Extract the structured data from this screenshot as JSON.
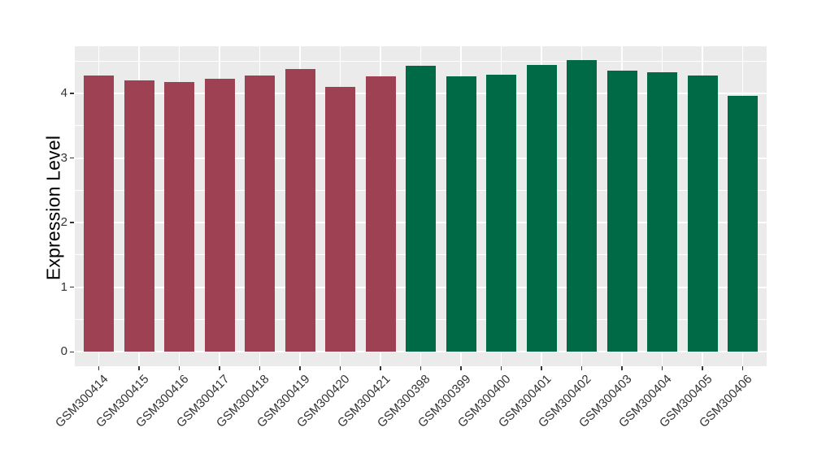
{
  "figure": {
    "background": "#FFFFFF",
    "panel_background": "#EBEBEB",
    "gridline_color": "#FFFFFF",
    "axis_text_color": "#333333",
    "axis_title_color": "#000000"
  },
  "chart_data": {
    "type": "bar",
    "title": "",
    "xlabel": "",
    "ylabel": "Expression Level",
    "ylim": [
      0,
      4.75
    ],
    "yticks": [
      0,
      1,
      2,
      3,
      4
    ],
    "grid": "major and minor horizontal white gridlines, vertical white gridline at each category",
    "legend_position": "none",
    "categories": [
      "GSM300414",
      "GSM300415",
      "GSM300416",
      "GSM300417",
      "GSM300418",
      "GSM300419",
      "GSM300420",
      "GSM300421",
      "GSM300398",
      "GSM300399",
      "GSM300400",
      "GSM300401",
      "GSM300402",
      "GSM300403",
      "GSM300404",
      "GSM300405",
      "GSM300406"
    ],
    "values": [
      4.28,
      4.2,
      4.17,
      4.22,
      4.28,
      4.38,
      4.1,
      4.26,
      4.42,
      4.26,
      4.29,
      4.44,
      4.51,
      4.35,
      4.33,
      4.28,
      3.96
    ],
    "bar_colors": [
      "#9E4152",
      "#9E4152",
      "#9E4152",
      "#9E4152",
      "#9E4152",
      "#9E4152",
      "#9E4152",
      "#9E4152",
      "#006A46",
      "#006A46",
      "#006A46",
      "#006A46",
      "#006A46",
      "#006A46",
      "#006A46",
      "#006A46",
      "#006A46"
    ],
    "group_colors": {
      "maroon": "#9E4152",
      "green": "#006A46"
    }
  }
}
